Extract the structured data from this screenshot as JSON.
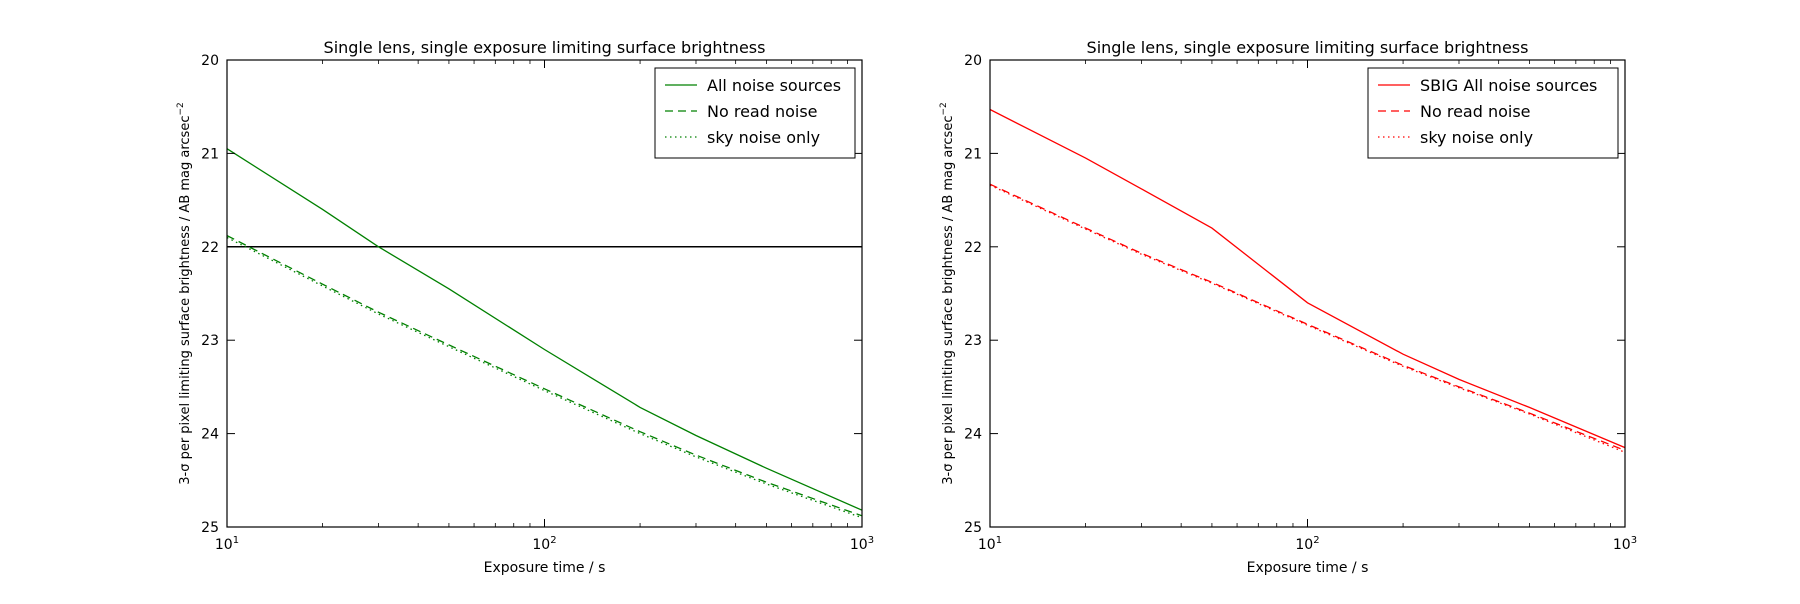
{
  "chart_data": [
    {
      "type": "line",
      "title": "Single lens, single exposure limiting surface brightness",
      "xlabel": "Exposure time / s",
      "ylabel": "3-σ per pixel limiting surface brightness / AB mag arcsec",
      "ylabel_sup": "−2",
      "x_scale": "log",
      "xlim": [
        10,
        1000
      ],
      "ylim": [
        25,
        20
      ],
      "y_inverted": true,
      "x_ticks": [
        {
          "base": "10",
          "exp": "1"
        },
        {
          "base": "10",
          "exp": "2"
        },
        {
          "base": "10",
          "exp": "3"
        }
      ],
      "y_ticks": [
        "20",
        "21",
        "22",
        "23",
        "24",
        "25"
      ],
      "legend_position": "top-right",
      "reference_line_y": 22,
      "reference_line_color": "#000000",
      "series": [
        {
          "name": "All noise sources",
          "color": "#008000",
          "dash": "solid",
          "x": [
            10,
            20,
            30,
            50,
            100,
            200,
            300,
            500,
            1000
          ],
          "y": [
            20.95,
            21.6,
            22.0,
            22.45,
            23.1,
            23.72,
            24.02,
            24.37,
            24.82
          ]
        },
        {
          "name": "No read noise",
          "color": "#008000",
          "dash": "dashed",
          "x": [
            10,
            20,
            30,
            50,
            100,
            200,
            300,
            500,
            1000
          ],
          "y": [
            21.88,
            22.4,
            22.7,
            23.05,
            23.52,
            23.98,
            24.23,
            24.52,
            24.88
          ]
        },
        {
          "name": "sky noise only",
          "color": "#008000",
          "dash": "dotted",
          "x": [
            10,
            20,
            30,
            50,
            100,
            200,
            300,
            500,
            1000
          ],
          "y": [
            21.9,
            22.42,
            22.72,
            23.07,
            23.54,
            24.0,
            24.25,
            24.54,
            24.9
          ]
        }
      ]
    },
    {
      "type": "line",
      "title": "Single lens, single exposure limiting surface brightness",
      "xlabel": "Exposure time / s",
      "ylabel": "3-σ per pixel limiting surface brightness / AB mag arcsec",
      "ylabel_sup": "−2",
      "x_scale": "log",
      "xlim": [
        10,
        1000
      ],
      "ylim": [
        25,
        20
      ],
      "y_inverted": true,
      "x_ticks": [
        {
          "base": "10",
          "exp": "1"
        },
        {
          "base": "10",
          "exp": "2"
        },
        {
          "base": "10",
          "exp": "3"
        }
      ],
      "y_ticks": [
        "20",
        "21",
        "22",
        "23",
        "24",
        "25"
      ],
      "legend_position": "top-right",
      "series": [
        {
          "name": "SBIG All noise sources",
          "color": "#ff0000",
          "dash": "solid",
          "x": [
            10,
            20,
            30,
            50,
            100,
            200,
            300,
            500,
            1000
          ],
          "y": [
            20.53,
            21.05,
            21.38,
            21.8,
            22.6,
            23.15,
            23.42,
            23.72,
            24.15
          ]
        },
        {
          "name": "No read noise",
          "color": "#ff0000",
          "dash": "dashed",
          "x": [
            10,
            20,
            30,
            50,
            100,
            200,
            300,
            500,
            1000
          ],
          "y": [
            21.33,
            21.8,
            22.07,
            22.38,
            22.83,
            23.27,
            23.5,
            23.78,
            24.18
          ]
        },
        {
          "name": "sky noise only",
          "color": "#ff0000",
          "dash": "dotted",
          "x": [
            10,
            20,
            30,
            50,
            100,
            200,
            300,
            500,
            1000
          ],
          "y": [
            21.34,
            21.81,
            22.08,
            22.39,
            22.84,
            23.28,
            23.51,
            23.79,
            24.2
          ]
        }
      ]
    }
  ]
}
